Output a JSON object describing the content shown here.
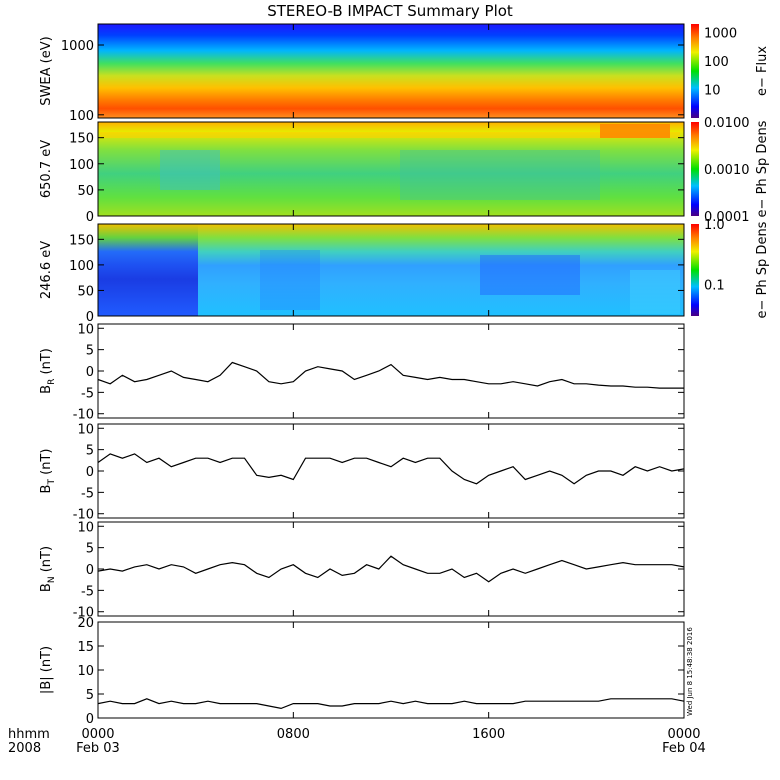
{
  "title": "STEREO-B IMPACT Summary Plot",
  "footer": {
    "hhmm_label": "hhmm",
    "year_label": "2008",
    "start_date": "Feb 03",
    "end_date": "Feb 04",
    "timestamp": "Wed Jun  8 15:48:38 2016"
  },
  "colors": {
    "line": "#000000",
    "frame": "#000000"
  },
  "chart_data": [
    {
      "type": "heatmap",
      "ylabel": "SWEA (eV)",
      "yscale": "log",
      "ylim": [
        90,
        2000
      ],
      "yticks": [
        "1000",
        "100"
      ],
      "colorbar": {
        "label": "e− Flux",
        "scale": "log",
        "ticks": [
          "1000",
          "100",
          "10"
        ],
        "range": [
          1,
          2000
        ]
      }
    },
    {
      "type": "heatmap",
      "ylabel": "650.7 eV",
      "ylim": [
        0,
        180
      ],
      "yticks": [
        "150",
        "100",
        "50",
        "0"
      ],
      "colorbar": {
        "label": "e− Ph Sp Dens",
        "scale": "log",
        "ticks": [
          "0.0100",
          "0.0010",
          "0.0001"
        ],
        "range": [
          0.0001,
          0.01
        ]
      }
    },
    {
      "type": "heatmap",
      "ylabel": "246.6 eV",
      "ylim": [
        0,
        180
      ],
      "yticks": [
        "150",
        "100",
        "50",
        "0"
      ],
      "colorbar": {
        "label": "e− Ph Sp Dens",
        "scale": "log",
        "ticks": [
          "1.0",
          "0.1"
        ],
        "range": [
          0.03,
          1.0
        ]
      }
    },
    {
      "type": "line",
      "ylabel": "B",
      "ysub": "R",
      "yunit": "(nT)",
      "ylim": [
        -11,
        11
      ],
      "yticks": [
        "10",
        "5",
        "0",
        "-5",
        "-10"
      ],
      "x": [
        0,
        0.5,
        1,
        1.5,
        2,
        2.5,
        3,
        3.5,
        4,
        4.5,
        5,
        5.5,
        6,
        6.5,
        7,
        7.5,
        8,
        8.5,
        9,
        9.5,
        10,
        10.5,
        11,
        11.5,
        12,
        12.5,
        13,
        13.5,
        14,
        14.5,
        15,
        15.5,
        16,
        16.5,
        17,
        17.5,
        18,
        18.5,
        19,
        19.5,
        20,
        20.5,
        21,
        21.5,
        22,
        22.5,
        23,
        23.5,
        24
      ],
      "values": [
        -2,
        -3,
        -1,
        -2.5,
        -2,
        -1,
        0,
        -1.5,
        -2,
        -2.5,
        -1,
        2,
        1,
        0,
        -2.5,
        -3,
        -2.5,
        0,
        1,
        0.5,
        0,
        -2,
        -1,
        0,
        1.5,
        -1,
        -1.5,
        -2,
        -1.5,
        -2,
        -2,
        -2.5,
        -3,
        -3,
        -2.5,
        -3,
        -3.5,
        -2.5,
        -2,
        -3,
        -3,
        -3.3,
        -3.5,
        -3.5,
        -3.8,
        -3.8,
        -4,
        -4,
        -4
      ]
    },
    {
      "type": "line",
      "ylabel": "B",
      "ysub": "T",
      "yunit": "(nT)",
      "ylim": [
        -11,
        11
      ],
      "yticks": [
        "10",
        "5",
        "0",
        "-5",
        "-10"
      ],
      "x": [
        0,
        0.5,
        1,
        1.5,
        2,
        2.5,
        3,
        3.5,
        4,
        4.5,
        5,
        5.5,
        6,
        6.5,
        7,
        7.5,
        8,
        8.5,
        9,
        9.5,
        10,
        10.5,
        11,
        11.5,
        12,
        12.5,
        13,
        13.5,
        14,
        14.5,
        15,
        15.5,
        16,
        16.5,
        17,
        17.5,
        18,
        18.5,
        19,
        19.5,
        20,
        20.5,
        21,
        21.5,
        22,
        22.5,
        23,
        23.5,
        24
      ],
      "values": [
        2,
        4,
        3,
        4,
        2,
        3,
        1,
        2,
        3,
        3,
        2,
        3,
        3,
        -1,
        -1.5,
        -1,
        -2,
        3,
        3,
        3,
        2,
        3,
        3,
        2,
        1,
        3,
        2,
        3,
        3,
        0,
        -2,
        -3,
        -1,
        0,
        1,
        -2,
        -1,
        0,
        -1,
        -3,
        -1,
        0,
        0,
        -1,
        1,
        0,
        1,
        0,
        0.5
      ]
    },
    {
      "type": "line",
      "ylabel": "B",
      "ysub": "N",
      "yunit": "(nT)",
      "ylim": [
        -11,
        11
      ],
      "yticks": [
        "10",
        "5",
        "0",
        "-5",
        "-10"
      ],
      "x": [
        0,
        0.5,
        1,
        1.5,
        2,
        2.5,
        3,
        3.5,
        4,
        4.5,
        5,
        5.5,
        6,
        6.5,
        7,
        7.5,
        8,
        8.5,
        9,
        9.5,
        10,
        10.5,
        11,
        11.5,
        12,
        12.5,
        13,
        13.5,
        14,
        14.5,
        15,
        15.5,
        16,
        16.5,
        17,
        17.5,
        18,
        18.5,
        19,
        19.5,
        20,
        20.5,
        21,
        21.5,
        22,
        22.5,
        23,
        23.5,
        24
      ],
      "values": [
        -0.5,
        0,
        -0.5,
        0.5,
        1,
        0,
        1,
        0.5,
        -1,
        0,
        1,
        1.5,
        1,
        -1,
        -2,
        0,
        1,
        -1,
        -2,
        0,
        -1.5,
        -1,
        1,
        0,
        3,
        1,
        0,
        -1,
        -1,
        0,
        -2,
        -1,
        -3,
        -1,
        0,
        -1,
        0,
        1,
        2,
        1,
        0,
        0.5,
        1,
        1.5,
        1,
        1,
        1,
        1,
        0.5
      ]
    },
    {
      "type": "line",
      "ylabel": "|B| (nT)",
      "ylim": [
        0,
        20
      ],
      "yticks": [
        "20",
        "15",
        "10",
        "5",
        "0"
      ],
      "x": [
        0,
        0.5,
        1,
        1.5,
        2,
        2.5,
        3,
        3.5,
        4,
        4.5,
        5,
        5.5,
        6,
        6.5,
        7,
        7.5,
        8,
        8.5,
        9,
        9.5,
        10,
        10.5,
        11,
        11.5,
        12,
        12.5,
        13,
        13.5,
        14,
        14.5,
        15,
        15.5,
        16,
        16.5,
        17,
        17.5,
        18,
        18.5,
        19,
        19.5,
        20,
        20.5,
        21,
        21.5,
        22,
        22.5,
        23,
        23.5,
        24
      ],
      "values": [
        3,
        3.5,
        3,
        3,
        4,
        3,
        3.5,
        3,
        3,
        3.5,
        3,
        3,
        3,
        3,
        2.5,
        2,
        3,
        3,
        3,
        2.5,
        2.5,
        3,
        3,
        3,
        3.5,
        3,
        3.5,
        3,
        3,
        3,
        3.5,
        3,
        3,
        3,
        3,
        3.5,
        3.5,
        3.5,
        3.5,
        3.5,
        3.5,
        3.5,
        4,
        4,
        4,
        4,
        4,
        4,
        3.5
      ]
    }
  ],
  "xaxis": {
    "ticks": [
      "0000",
      "0800",
      "1600",
      "0000"
    ],
    "tick_hours": [
      0,
      8,
      16,
      24
    ],
    "range_hours": [
      0,
      24
    ]
  }
}
